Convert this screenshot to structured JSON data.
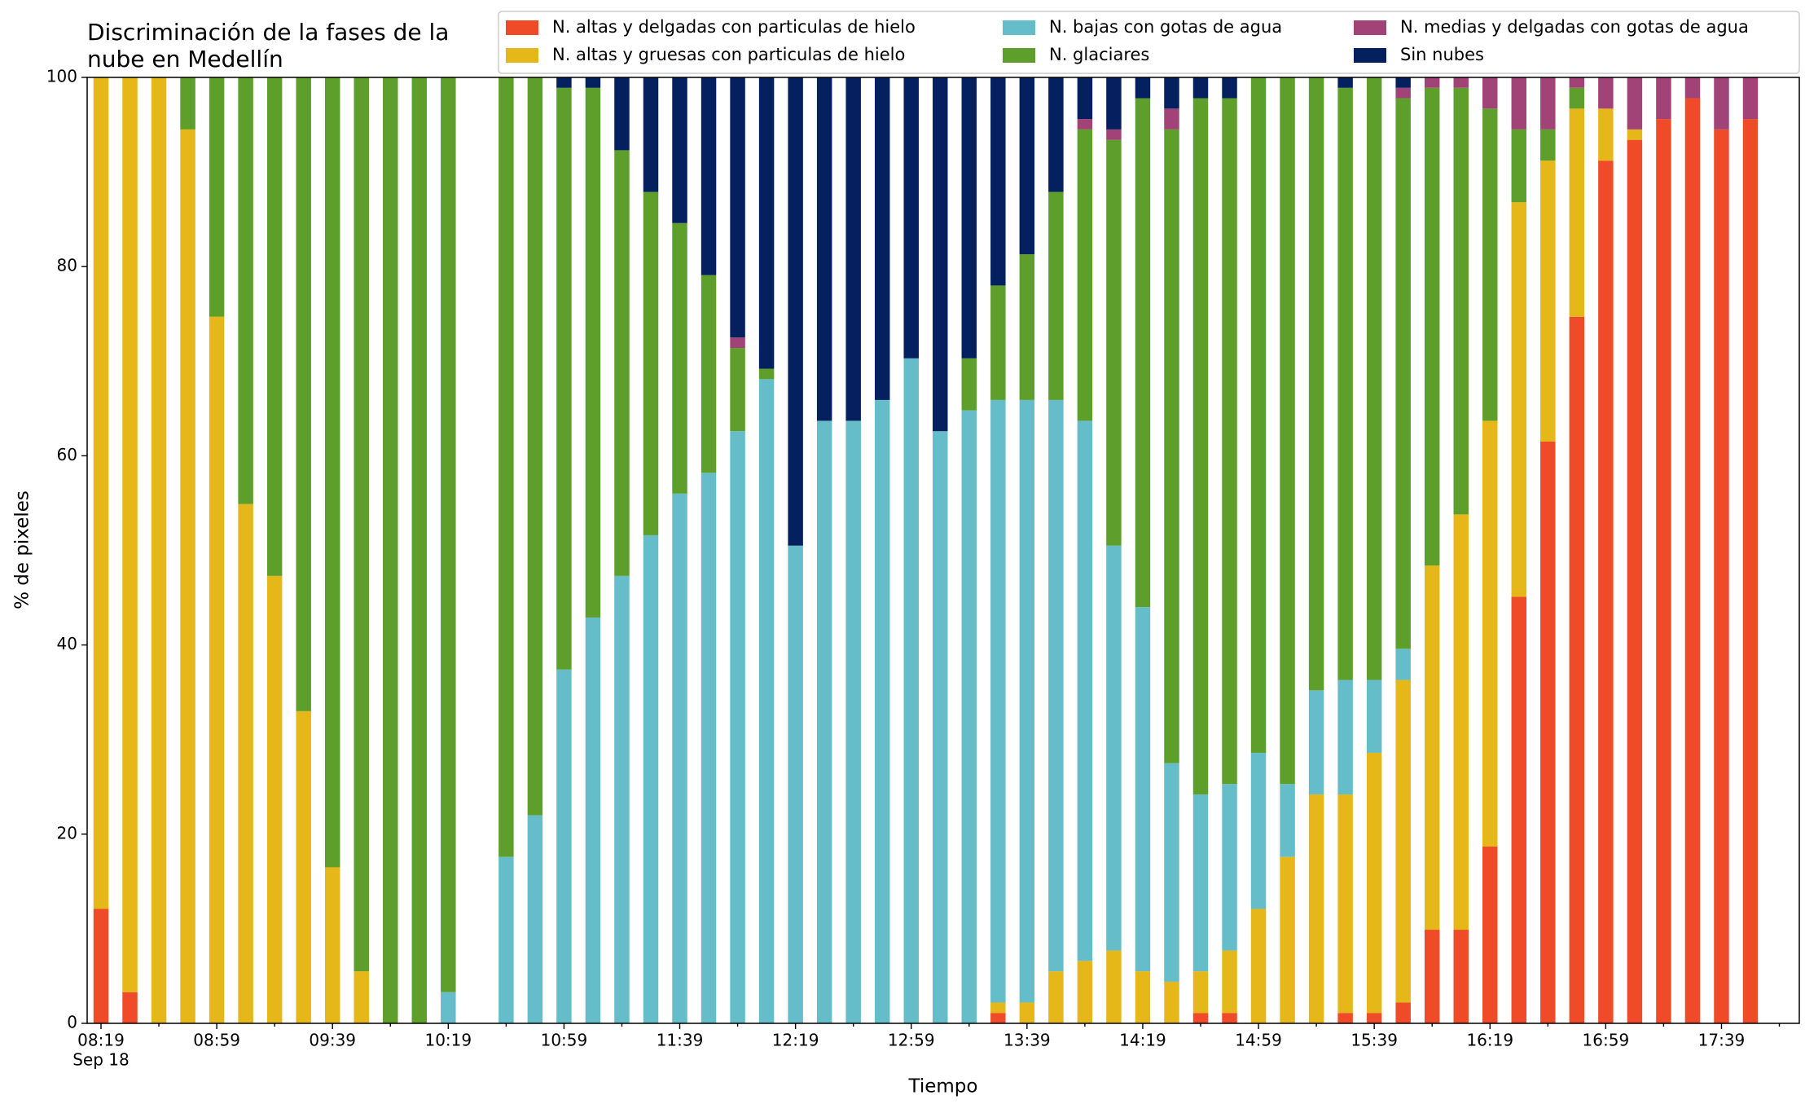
{
  "chart_data": {
    "type": "stacked_bar",
    "title": [
      "Discriminación de la fases de la",
      "nube en Medellín"
    ],
    "xlabel": "Tiempo",
    "ylabel": "% de pixeles",
    "x_sublabel": "Sep 18",
    "categories": [
      "08:19",
      null,
      null,
      null,
      "08:59",
      null,
      null,
      null,
      "09:39",
      null,
      null,
      null,
      "10:19",
      null,
      null,
      null,
      "10:59",
      null,
      null,
      null,
      "11:39",
      null,
      null,
      null,
      "12:19",
      null,
      null,
      null,
      "12:59",
      null,
      null,
      null,
      "13:39",
      null,
      null,
      null,
      "14:19",
      null,
      null,
      null,
      "14:59",
      null,
      null,
      null,
      "15:39",
      null,
      null,
      null,
      "16:19",
      null,
      null,
      null,
      "16:59",
      null,
      null,
      null,
      "17:39",
      null
    ],
    "ylim": [
      0,
      100
    ],
    "yticks": [
      0,
      20,
      40,
      60,
      80,
      100
    ],
    "grid": false,
    "legend": "top-right",
    "series": [
      {
        "name": "N. altas y delgadas con particulas de hielo",
        "color": "#ef4b28",
        "values": [
          12.1,
          3.3,
          0,
          0,
          0,
          0,
          0,
          0,
          0,
          0,
          0,
          0,
          0,
          null,
          0,
          0,
          0,
          0,
          0,
          0,
          0,
          0,
          0,
          0,
          0,
          0,
          0,
          0,
          0,
          0,
          0,
          1.1,
          0,
          0,
          0,
          0,
          0,
          0,
          1.1,
          1.1,
          0,
          0,
          0,
          1.1,
          1.1,
          2.2,
          9.9,
          9.9,
          18.7,
          45.1,
          61.5,
          74.7,
          91.2,
          93.4,
          95.6,
          97.8,
          94.5,
          95.6
        ]
      },
      {
        "name": "N. altas y gruesas con particulas de hielo",
        "color": "#e5b719",
        "values": [
          87.9,
          96.7,
          100,
          94.5,
          74.7,
          54.9,
          47.3,
          33.0,
          16.5,
          5.5,
          0,
          0,
          0,
          null,
          0,
          0,
          0,
          0,
          0,
          0,
          0,
          0,
          0,
          0,
          0,
          0,
          0,
          0,
          0,
          0,
          0,
          1.1,
          2.2,
          5.5,
          6.6,
          7.7,
          5.5,
          4.4,
          4.4,
          6.6,
          12.1,
          17.6,
          24.2,
          23.1,
          27.5,
          34.1,
          38.5,
          43.9,
          45.0,
          41.7,
          29.7,
          22.0,
          5.5,
          1.1,
          0,
          0,
          0,
          0
        ]
      },
      {
        "name": "N. bajas con gotas de agua",
        "color": "#66bdca",
        "values": [
          0,
          0,
          0,
          0,
          0,
          0,
          0,
          0,
          0,
          0,
          0,
          0,
          3.3,
          null,
          17.6,
          22.0,
          37.4,
          42.9,
          47.3,
          51.6,
          56.0,
          58.2,
          62.6,
          68.1,
          50.5,
          63.7,
          63.7,
          65.9,
          70.3,
          62.6,
          64.8,
          63.7,
          63.7,
          60.4,
          57.1,
          42.8,
          38.5,
          23.1,
          18.7,
          17.6,
          16.5,
          7.7,
          11.0,
          12.1,
          7.7,
          3.3,
          0,
          0,
          0,
          0,
          0,
          0,
          0,
          0,
          0,
          0,
          0,
          0
        ]
      },
      {
        "name": "N. glaciares",
        "color": "#5e9f2c",
        "values": [
          0,
          0,
          0,
          5.5,
          25.3,
          45.1,
          52.7,
          67.0,
          83.5,
          94.5,
          100,
          100,
          96.7,
          null,
          82.4,
          78.0,
          61.5,
          56.0,
          45.0,
          36.3,
          28.6,
          20.9,
          8.8,
          1.1,
          0,
          0,
          0,
          0,
          0,
          0,
          5.5,
          12.1,
          15.4,
          22.0,
          30.8,
          42.9,
          53.8,
          67.0,
          73.6,
          72.5,
          71.4,
          74.7,
          64.8,
          62.6,
          63.7,
          58.2,
          50.5,
          45.1,
          33.0,
          7.7,
          3.3,
          2.2,
          0,
          0,
          0,
          0,
          0,
          0
        ]
      },
      {
        "name": "N. medias y delgadas con gotas de agua",
        "color": "#a24378",
        "values": [
          0,
          0,
          0,
          0,
          0,
          0,
          0,
          0,
          0,
          0,
          0,
          0,
          0,
          null,
          0,
          0,
          0,
          0,
          0,
          0,
          0,
          0,
          1.1,
          0,
          0,
          0,
          0,
          0,
          0,
          0,
          0,
          0,
          0,
          0,
          1.1,
          1.1,
          0,
          2.2,
          0,
          0,
          0,
          0,
          0,
          0,
          0,
          1.1,
          1.1,
          1.1,
          3.3,
          5.5,
          5.5,
          1.1,
          3.3,
          5.5,
          4.4,
          2.2,
          5.5,
          4.4
        ]
      },
      {
        "name": "Sin nubes",
        "color": "#04205f",
        "values": [
          0,
          0,
          0,
          0,
          0,
          0,
          0,
          0,
          0,
          0,
          0,
          0,
          0,
          null,
          0,
          0,
          1.1,
          1.1,
          7.7,
          12.1,
          15.4,
          20.9,
          27.5,
          30.8,
          49.5,
          36.3,
          36.3,
          34.1,
          29.7,
          37.4,
          29.7,
          22.0,
          18.7,
          12.1,
          4.4,
          5.5,
          2.2,
          3.3,
          2.2,
          2.2,
          0,
          0,
          0,
          1.1,
          0,
          1.1,
          0,
          0,
          0,
          0,
          0,
          0,
          0,
          0,
          0,
          0,
          0,
          0
        ]
      }
    ]
  }
}
